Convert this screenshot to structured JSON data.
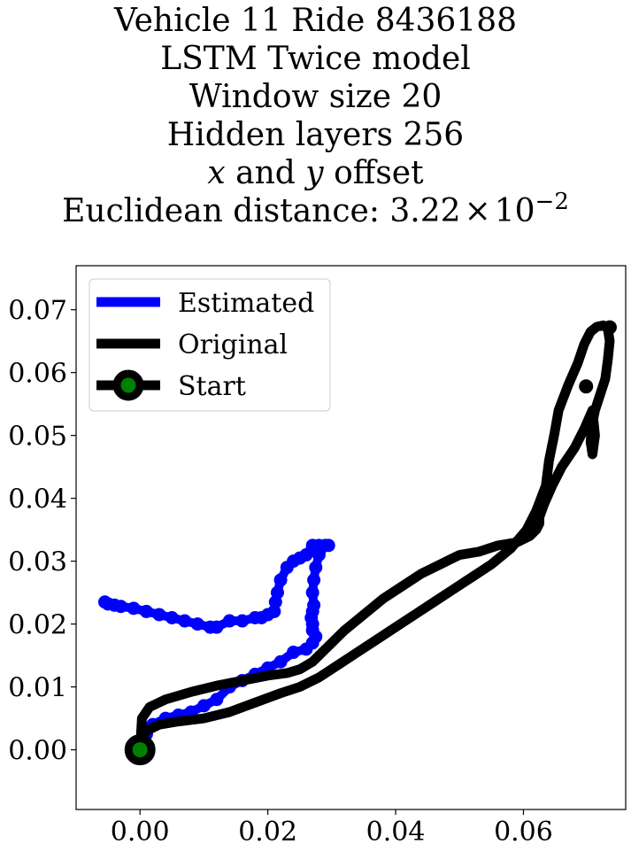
{
  "title_lines": [
    "Vehicle 11 Ride 8436188",
    "LSTM Twice model",
    "Window size 20",
    "Hidden layers 256"
  ],
  "subtitle_offset": {
    "x_var": "x",
    "and": " and ",
    "y_var": "y",
    "rest": " offset"
  },
  "distance": {
    "label": "Euclidean distance: ",
    "mantissa": "3.22",
    "times": "×",
    "base": "10",
    "exponent": "−2"
  },
  "colors": {
    "estimated": "#0000ff",
    "original": "#000000",
    "start_marker_fill": "#008000",
    "start_marker_edge": "#000000"
  },
  "chart_data": {
    "type": "line",
    "xlim": [
      -0.01,
      0.076
    ],
    "ylim": [
      -0.0095,
      0.077
    ],
    "xticks": [
      0.0,
      0.02,
      0.04,
      0.06
    ],
    "xtick_labels": [
      "0.00",
      "0.02",
      "0.04",
      "0.06"
    ],
    "yticks": [
      0.0,
      0.01,
      0.02,
      0.03,
      0.04,
      0.05,
      0.06,
      0.07
    ],
    "ytick_labels": [
      "0.00",
      "0.01",
      "0.02",
      "0.03",
      "0.04",
      "0.05",
      "0.06",
      "0.07"
    ],
    "legend_position": "top-left",
    "legend": [
      "Estimated",
      "Original",
      "Start"
    ],
    "series": [
      {
        "name": "Estimated",
        "style": "markers",
        "x": [
          0.0,
          0.001,
          0.002,
          0.004,
          0.006,
          0.008,
          0.01,
          0.012,
          0.014,
          0.016,
          0.018,
          0.02,
          0.022,
          0.024,
          0.026,
          0.027,
          0.0275,
          0.027,
          0.027,
          0.0268,
          0.027,
          0.0272,
          0.027,
          0.0272,
          0.0275,
          0.028,
          0.029,
          0.0295,
          0.028,
          0.027,
          0.026,
          0.025,
          0.024,
          0.023,
          0.022,
          0.0215,
          0.0212,
          0.021,
          0.02,
          0.019,
          0.018,
          0.016,
          0.014,
          0.012,
          0.011,
          0.009,
          0.007,
          0.005,
          0.003,
          0.001,
          -0.001,
          -0.003,
          -0.004,
          -0.005,
          -0.0055
        ],
        "y": [
          0.0,
          0.0025,
          0.004,
          0.005,
          0.0055,
          0.006,
          0.007,
          0.008,
          0.01,
          0.011,
          0.012,
          0.013,
          0.014,
          0.0155,
          0.016,
          0.017,
          0.018,
          0.019,
          0.02,
          0.021,
          0.022,
          0.023,
          0.025,
          0.027,
          0.029,
          0.031,
          0.0325,
          0.0325,
          0.0325,
          0.0325,
          0.031,
          0.0305,
          0.03,
          0.029,
          0.027,
          0.025,
          0.0235,
          0.022,
          0.0215,
          0.021,
          0.021,
          0.0205,
          0.0205,
          0.0195,
          0.0195,
          0.02,
          0.0205,
          0.021,
          0.0215,
          0.022,
          0.0225,
          0.0228,
          0.023,
          0.0232,
          0.0235
        ]
      },
      {
        "name": "Original",
        "style": "line",
        "x": [
          0.0,
          0.0,
          0.0003,
          0.001,
          0.003,
          0.006,
          0.01,
          0.014,
          0.018,
          0.022,
          0.025,
          0.028,
          0.031,
          0.034,
          0.037,
          0.04,
          0.043,
          0.046,
          0.049,
          0.052,
          0.055,
          0.058,
          0.0605,
          0.062,
          0.0635,
          0.064,
          0.0648,
          0.0655,
          0.067,
          0.0685,
          0.0695,
          0.0705,
          0.0715,
          0.0725,
          0.0732,
          0.0735,
          0.0732,
          0.0728,
          0.072,
          0.0712,
          0.0708,
          0.0705,
          0.0708,
          0.0712,
          0.0708,
          0.0695,
          0.068,
          0.066,
          0.0645,
          0.0632,
          0.0625,
          0.0625,
          0.062,
          0.061,
          0.059,
          0.056,
          0.053,
          0.05,
          0.047,
          0.044,
          0.041,
          0.038,
          0.035,
          0.032,
          0.029,
          0.027,
          0.025,
          0.023,
          0.02,
          0.016,
          0.012,
          0.008,
          0.004,
          0.0015,
          0.0003,
          0.0
        ],
        "y": [
          0.0,
          0.001,
          0.002,
          0.003,
          0.004,
          0.0045,
          0.005,
          0.006,
          0.0075,
          0.009,
          0.01,
          0.0115,
          0.0135,
          0.0155,
          0.0175,
          0.0195,
          0.0215,
          0.0235,
          0.0255,
          0.0275,
          0.0295,
          0.032,
          0.035,
          0.038,
          0.042,
          0.046,
          0.05,
          0.054,
          0.058,
          0.0615,
          0.0645,
          0.0665,
          0.0673,
          0.0675,
          0.067,
          0.065,
          0.062,
          0.059,
          0.0565,
          0.054,
          0.052,
          0.049,
          0.047,
          0.05,
          0.054,
          0.051,
          0.048,
          0.045,
          0.042,
          0.039,
          0.037,
          0.036,
          0.035,
          0.034,
          0.033,
          0.0325,
          0.0315,
          0.031,
          0.0295,
          0.028,
          0.026,
          0.024,
          0.0215,
          0.019,
          0.016,
          0.014,
          0.0128,
          0.0122,
          0.0118,
          0.011,
          0.0102,
          0.0092,
          0.008,
          0.0068,
          0.005,
          0.0
        ]
      }
    ],
    "start_point": {
      "x": 0.0,
      "y": 0.0
    },
    "end_markers": [
      {
        "x": 0.0735,
        "y": 0.0672
      },
      {
        "x": 0.0698,
        "y": 0.0578
      }
    ]
  }
}
